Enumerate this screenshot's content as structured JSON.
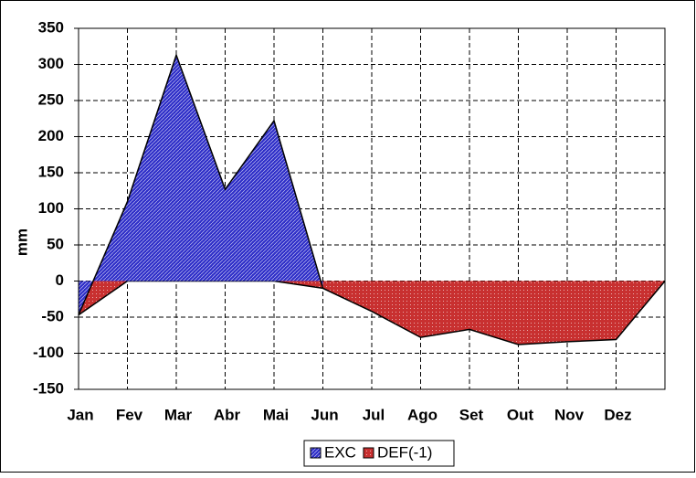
{
  "chart_data": {
    "type": "area",
    "y_label": "mm",
    "categories": [
      "Jan",
      "Fev",
      "Mar",
      "Abr",
      "Mai",
      "Jun",
      "Jul",
      "Ago",
      "Set",
      "Out",
      "Nov",
      "Dez",
      null
    ],
    "series": [
      {
        "name": "EXC",
        "color": "#2e2ec8",
        "values": [
          -47,
          110,
          313,
          127,
          222,
          -10,
          null,
          null,
          null,
          null,
          null,
          null,
          null
        ]
      },
      {
        "name": "DEF(-1)",
        "color": "#c83030",
        "values": [
          -47,
          0,
          0,
          0,
          0,
          -10,
          -42,
          -78,
          -67,
          -88,
          -84,
          -81,
          0
        ]
      }
    ],
    "ylim": [
      -150,
      350
    ],
    "yticks": [
      -150,
      -100,
      -50,
      0,
      50,
      100,
      150,
      200,
      250,
      300,
      350
    ],
    "grid": true,
    "legend": "bottom"
  }
}
